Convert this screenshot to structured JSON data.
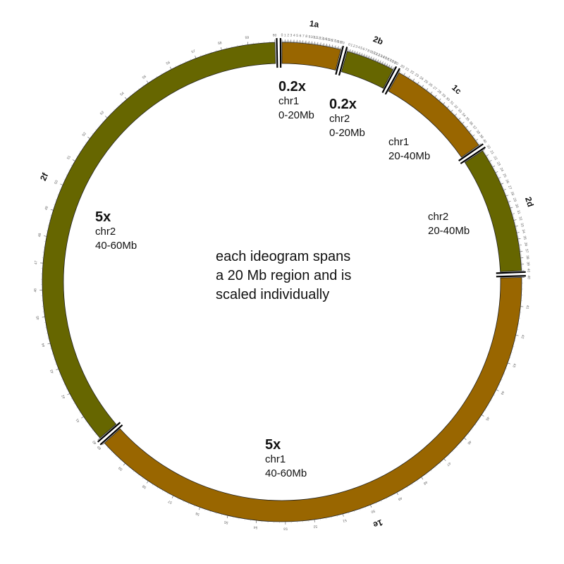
{
  "ideograms": [
    {
      "label": "1a",
      "chromosome": "chr1",
      "region": "0-20Mb",
      "scale": "0.2x",
      "color": "#996600",
      "tick_start": 0,
      "tick_end": 20
    },
    {
      "label": "2b",
      "chromosome": "chr2",
      "region": "0-20Mb",
      "scale": "0.2x",
      "color": "#666600",
      "tick_start": 0,
      "tick_end": 20
    },
    {
      "label": "1c",
      "chromosome": "chr1",
      "region": "20-40Mb",
      "scale": "",
      "color": "#996600",
      "tick_start": 20,
      "tick_end": 40
    },
    {
      "label": "2d",
      "chromosome": "chr2",
      "region": "20-40Mb",
      "scale": "",
      "color": "#666600",
      "tick_start": 20,
      "tick_end": 40
    },
    {
      "label": "1e",
      "chromosome": "chr1",
      "region": "40-60Mb",
      "scale": "5x",
      "color": "#996600",
      "tick_start": 40,
      "tick_end": 60
    },
    {
      "label": "2f",
      "chromosome": "chr2",
      "region": "40-60Mb",
      "scale": "5x",
      "color": "#666600",
      "tick_start": 40,
      "tick_end": 60
    }
  ],
  "notes": {
    "n1a": {
      "scale": "0.2x",
      "chr": "chr1",
      "range": "0-20Mb"
    },
    "n2b": {
      "scale": "0.2x",
      "chr": "chr2",
      "range": "0-20Mb"
    },
    "n1c": {
      "chr": "chr1",
      "range": "20-40Mb"
    },
    "n2d": {
      "chr": "chr2",
      "range": "20-40Mb"
    },
    "n1e": {
      "scale": "5x",
      "chr": "chr1",
      "range": "40-60Mb"
    },
    "n2f": {
      "scale": "5x",
      "chr": "chr2",
      "range": "40-60Mb"
    }
  },
  "caption": {
    "line1": "each ideogram spans",
    "line2": "a 20 Mb region and is",
    "line3": "scaled individually"
  }
}
